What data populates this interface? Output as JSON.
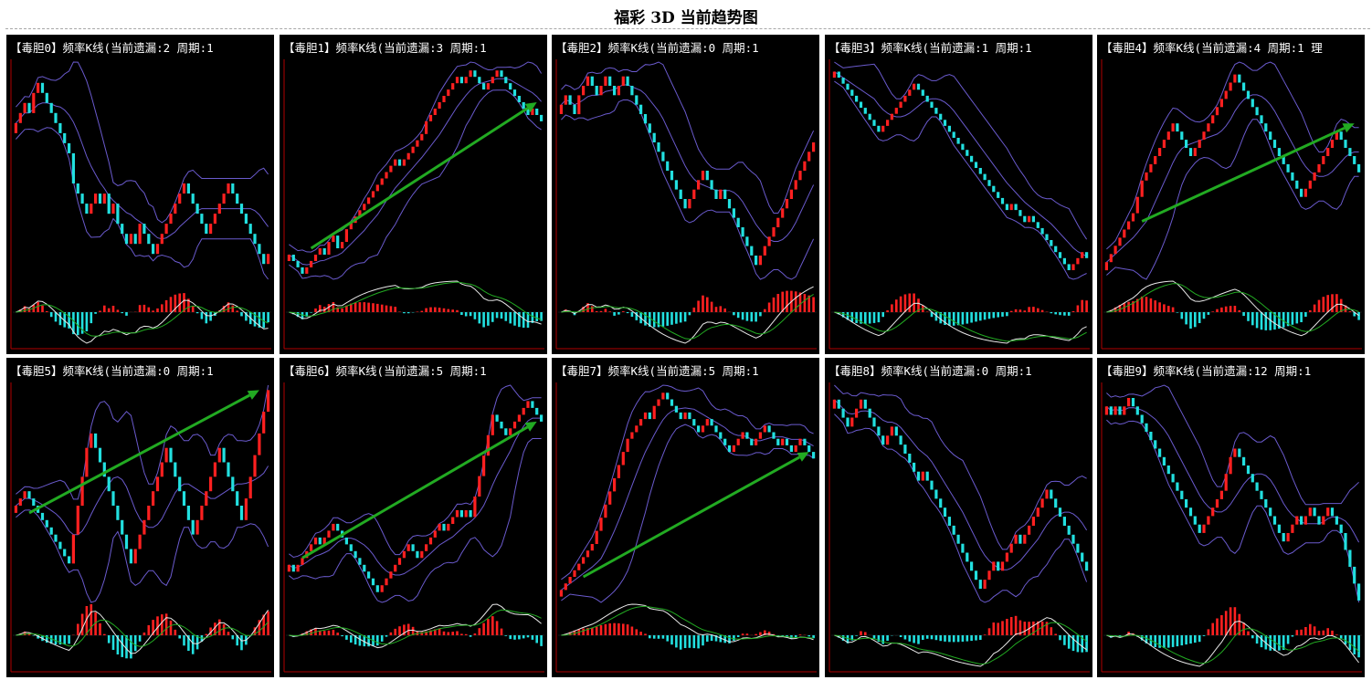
{
  "page": {
    "title": "福彩 3D 当前趋势图"
  },
  "colors": {
    "background": "#000000",
    "axis": "#b00000",
    "candle_up": "#ff2020",
    "candle_down": "#22e0e0",
    "band": "#6a5acd",
    "macd_fast": "#e8e8e8",
    "macd_slow": "#22aa22",
    "trend_arrow": "#22aa22"
  },
  "chart_data": [
    {
      "type": "candlestick",
      "label": "【毒胆0】频率K线(当前遗漏:2 周期:1",
      "close": [
        5,
        6,
        7,
        6,
        8,
        9,
        8,
        7,
        6,
        5,
        4,
        3,
        2,
        -1,
        -2,
        -3,
        -4,
        -3,
        -2,
        -3,
        -2,
        -4,
        -3,
        -5,
        -6,
        -7,
        -6,
        -7,
        -5,
        -6,
        -7,
        -8,
        -7,
        -6,
        -5,
        -4,
        -3,
        -2,
        -1,
        -2,
        -3,
        -4,
        -5,
        -6,
        -5,
        -4,
        -3,
        -2,
        -1,
        -2,
        -3,
        -4,
        -5,
        -6,
        -7,
        -8,
        -9,
        -8
      ],
      "trend_arrow": null
    },
    {
      "type": "candlestick",
      "label": "【毒胆1】频率K线(当前遗漏:3 周期:1",
      "close": [
        -12,
        -13,
        -14,
        -15,
        -14,
        -13,
        -12,
        -11,
        -12,
        -10,
        -9,
        -11,
        -10,
        -8,
        -7,
        -6,
        -5,
        -4,
        -3,
        -2,
        -1,
        0,
        1,
        2,
        3,
        2,
        3,
        4,
        5,
        6,
        7,
        9,
        10,
        11,
        12,
        13,
        14,
        15,
        16,
        15,
        16,
        17,
        16,
        15,
        14,
        15,
        16,
        17,
        16,
        15,
        14,
        13,
        12,
        11,
        10,
        11,
        10,
        9
      ],
      "trend_arrow": {
        "from": [
          5,
          -11
        ],
        "to": [
          56,
          12
        ]
      }
    },
    {
      "type": "candlestick",
      "label": "【毒胆2】频率K线(当前遗漏:0 周期:1",
      "close": [
        6,
        7,
        6,
        5,
        7,
        8,
        9,
        8,
        7,
        8,
        9,
        8,
        7,
        8,
        9,
        8,
        7,
        6,
        5,
        4,
        3,
        2,
        1,
        0,
        -1,
        -2,
        -3,
        -4,
        -5,
        -4,
        -3,
        -2,
        -1,
        -2,
        -3,
        -4,
        -3,
        -4,
        -5,
        -6,
        -7,
        -8,
        -9,
        -10,
        -11,
        -10,
        -9,
        -8,
        -7,
        -6,
        -5,
        -4,
        -3,
        -2,
        -1,
        0,
        1,
        2
      ],
      "trend_arrow": null
    },
    {
      "type": "candlestick",
      "label": "【毒胆3】频率K线(当前遗漏:1 周期:1",
      "close": [
        10,
        9,
        8,
        7,
        6,
        5,
        4,
        3,
        2,
        1,
        0,
        1,
        2,
        3,
        4,
        5,
        6,
        7,
        8,
        7,
        6,
        5,
        4,
        3,
        2,
        1,
        0,
        -1,
        -2,
        -3,
        -4,
        -5,
        -6,
        -7,
        -8,
        -9,
        -10,
        -11,
        -12,
        -13,
        -12,
        -13,
        -14,
        -15,
        -14,
        -15,
        -16,
        -17,
        -18,
        -19,
        -20,
        -21,
        -22,
        -23,
        -22,
        -21,
        -20,
        -21
      ],
      "trend_arrow": null
    },
    {
      "type": "candlestick",
      "label": "【毒胆4】频率K线(当前遗漏:4 周期:1 理",
      "close": [
        -14,
        -13,
        -12,
        -11,
        -10,
        -9,
        -8,
        -6,
        -4,
        -3,
        -2,
        -1,
        0,
        1,
        2,
        3,
        2,
        1,
        0,
        -1,
        0,
        1,
        2,
        3,
        4,
        5,
        6,
        7,
        8,
        9,
        8,
        7,
        6,
        5,
        4,
        3,
        2,
        1,
        0,
        -1,
        -2,
        -3,
        -4,
        -5,
        -6,
        -5,
        -4,
        -3,
        -2,
        -1,
        0,
        1,
        2,
        1,
        0,
        -1,
        -2,
        -3
      ],
      "trend_arrow": {
        "from": [
          8,
          -9
        ],
        "to": [
          56,
          3
        ]
      }
    },
    {
      "type": "candlestick",
      "label": "【毒胆5】频率K线(当前遗漏:0 周期:1",
      "close": [
        -4,
        -3,
        -2,
        -3,
        -4,
        -5,
        -6,
        -7,
        -8,
        -9,
        -10,
        -11,
        -12,
        -8,
        -4,
        0,
        4,
        6,
        4,
        2,
        0,
        -2,
        -4,
        -6,
        -8,
        -10,
        -12,
        -10,
        -8,
        -6,
        -4,
        -2,
        0,
        2,
        4,
        2,
        0,
        -2,
        -4,
        -6,
        -8,
        -6,
        -4,
        -2,
        0,
        2,
        4,
        2,
        0,
        -2,
        -4,
        -6,
        -3,
        0,
        3,
        6,
        9,
        12
      ],
      "trend_arrow": {
        "from": [
          3,
          -5
        ],
        "to": [
          55,
          12
        ]
      }
    },
    {
      "type": "candlestick",
      "label": "【毒胆6】频率K线(当前遗漏:5 周期:1",
      "close": [
        -8,
        -9,
        -8,
        -7,
        -6,
        -5,
        -4,
        -5,
        -4,
        -3,
        -2,
        -3,
        -4,
        -5,
        -6,
        -7,
        -8,
        -9,
        -10,
        -11,
        -12,
        -11,
        -10,
        -9,
        -8,
        -7,
        -6,
        -5,
        -6,
        -7,
        -6,
        -5,
        -4,
        -3,
        -2,
        -3,
        -2,
        -1,
        0,
        -1,
        0,
        -1,
        2,
        5,
        8,
        11,
        14,
        13,
        12,
        11,
        12,
        13,
        14,
        15,
        16,
        15,
        14,
        13
      ],
      "trend_arrow": {
        "from": [
          3,
          -7
        ],
        "to": [
          56,
          13
        ]
      }
    },
    {
      "type": "candlestick",
      "label": "【毒胆7】频率K线(当前遗漏:5 周期:1",
      "close": [
        -10,
        -9,
        -8,
        -7,
        -6,
        -5,
        -4,
        -3,
        -1,
        1,
        3,
        5,
        7,
        9,
        11,
        13,
        14,
        15,
        16,
        17,
        16,
        18,
        19,
        20,
        19,
        18,
        17,
        16,
        17,
        16,
        15,
        14,
        15,
        16,
        15,
        14,
        13,
        12,
        11,
        12,
        13,
        14,
        13,
        12,
        13,
        14,
        15,
        14,
        13,
        12,
        13,
        12,
        11,
        12,
        13,
        12,
        11,
        10
      ],
      "trend_arrow": {
        "from": [
          5,
          -8
        ],
        "to": [
          56,
          11
        ]
      }
    },
    {
      "type": "candlestick",
      "label": "【毒胆8】频率K线(当前遗漏:0 周期:1",
      "close": [
        6,
        5,
        4,
        3,
        4,
        5,
        6,
        5,
        4,
        3,
        2,
        1,
        2,
        3,
        2,
        1,
        0,
        -1,
        -2,
        -3,
        -2,
        -3,
        -4,
        -5,
        -6,
        -7,
        -8,
        -9,
        -10,
        -11,
        -12,
        -13,
        -14,
        -15,
        -14,
        -13,
        -12,
        -13,
        -12,
        -11,
        -10,
        -9,
        -10,
        -9,
        -8,
        -7,
        -6,
        -5,
        -4,
        -5,
        -6,
        -7,
        -8,
        -9,
        -10,
        -11,
        -12,
        -13
      ],
      "trend_arrow": null
    },
    {
      "type": "candlestick",
      "label": "【毒胆9】频率K线(当前遗漏:12 周期:1",
      "close": [
        8,
        7,
        8,
        7,
        8,
        9,
        8,
        7,
        6,
        5,
        4,
        3,
        2,
        1,
        0,
        -1,
        -2,
        -3,
        -4,
        -5,
        -6,
        -7,
        -6,
        -5,
        -4,
        -3,
        -2,
        0,
        2,
        3,
        2,
        1,
        0,
        -1,
        -2,
        -3,
        -4,
        -5,
        -6,
        -7,
        -8,
        -7,
        -6,
        -5,
        -6,
        -5,
        -4,
        -5,
        -6,
        -5,
        -4,
        -5,
        -6,
        -7,
        -9,
        -11,
        -13,
        -15
      ],
      "trend_arrow": null
    }
  ]
}
